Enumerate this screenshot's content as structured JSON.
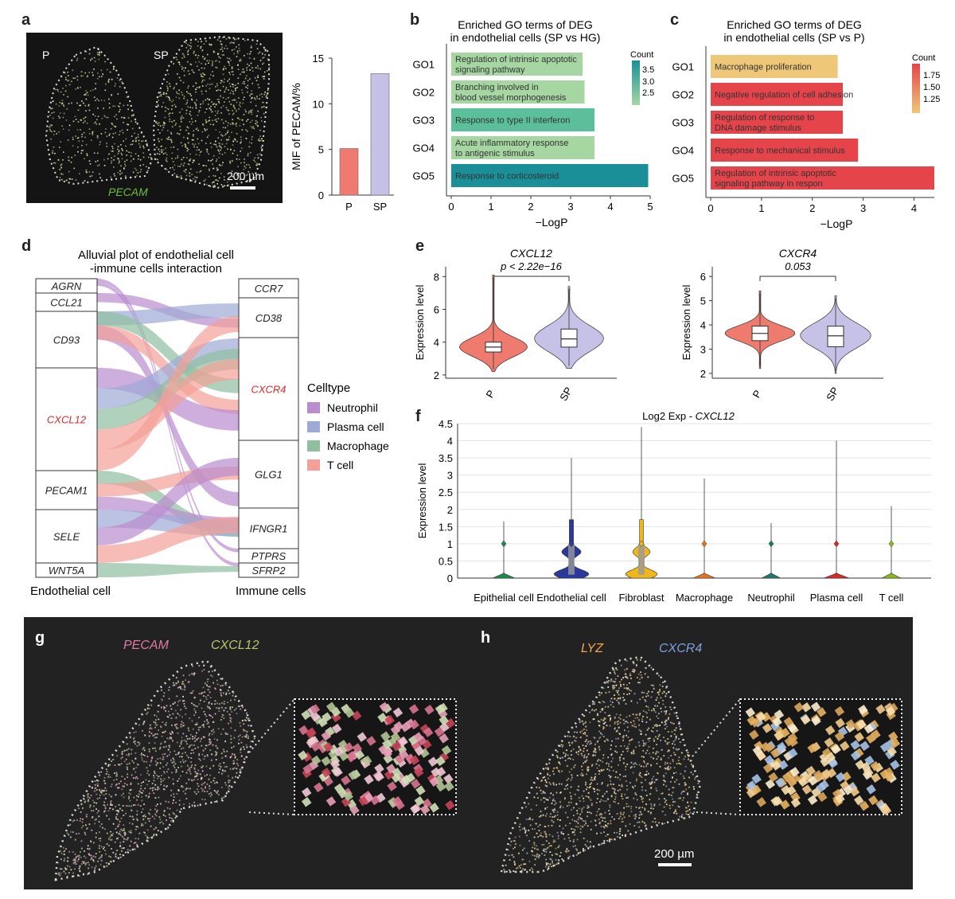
{
  "panels": {
    "a": {
      "letter": "a",
      "image_labels": [
        "P",
        "SP"
      ],
      "gene_label": "PECAM",
      "scale_bar": "200 µm",
      "bar_chart": {
        "type": "bar",
        "categories": [
          "P",
          "SP"
        ],
        "values": [
          5.1,
          13.3
        ],
        "ylabel": "MIF of PECAM/%",
        "ylim": [
          0,
          15
        ],
        "yticks": [
          "0",
          "5",
          "10",
          "15"
        ],
        "colors": [
          "#f07a6f",
          "#c5c0e6"
        ]
      }
    },
    "b": {
      "letter": "b",
      "title_line1": "Enriched GO terms of DEG",
      "title_line2": "in endothelial cells (SP vs HG)",
      "xlabel": "−LogP",
      "xticks": [
        "0",
        "1",
        "2",
        "3",
        "4",
        "5"
      ],
      "legend_title": "Count",
      "legend_values": [
        "3.5",
        "3.0",
        "2.5"
      ]
    },
    "c": {
      "letter": "c",
      "title_line1": "Enriched GO terms of DEG",
      "title_line2": "in endothelial cells (SP vs P)",
      "xlabel": "−LogP",
      "xticks": [
        "0",
        "1",
        "2",
        "3",
        "4"
      ],
      "legend_title": "Count",
      "legend_values": [
        "1.75",
        "1.50",
        "1.25"
      ]
    },
    "d": {
      "letter": "d",
      "title_line1": "Alluvial plot of endothelial cell",
      "title_line2": "-immune cells interaction",
      "left_axis": "Endothelial cell",
      "right_axis": "Immune cells",
      "left_nodes": [
        "AGRN",
        "CCL21",
        "CD93",
        "CXCL12",
        "PECAM1",
        "SELE",
        "WNT5A"
      ],
      "right_nodes": [
        "CCR7",
        "CD38",
        "CXCR4",
        "GLG1",
        "IFNGR1",
        "PTPRS",
        "SFRP2"
      ],
      "legend_title": "Celltype",
      "legend": [
        {
          "name": "Neutrophil",
          "color": "#b98ccf"
        },
        {
          "name": "Plasma cell",
          "color": "#9eaad6"
        },
        {
          "name": "Macrophage",
          "color": "#8fbf9f"
        },
        {
          "name": "T cell",
          "color": "#f4a097"
        }
      ]
    },
    "e": {
      "letter": "e",
      "left_title": "CXCL12",
      "left_pvalue": "p < 2.22e−16",
      "right_title": "CXCR4",
      "right_pvalue": "0.053",
      "ylabel": "Expression level",
      "left_yticks": [
        "2",
        "4",
        "6",
        "8"
      ],
      "right_yticks": [
        "2",
        "3",
        "4",
        "5",
        "6"
      ],
      "groups": [
        "P",
        "SP"
      ]
    },
    "f": {
      "letter": "f",
      "title_prefix": "Log2 Exp - ",
      "title_gene": "CXCL12",
      "ylabel": "Expression level",
      "yticks": [
        "0",
        "0.5",
        "1",
        "1.5",
        "2",
        "2.5",
        "3",
        "3.5",
        "4",
        "4.5"
      ],
      "cell_types": [
        "Epithelial cell",
        "Endothelial cell",
        "Fibroblast",
        "Macrophage",
        "Neutrophil",
        "Plasma cell",
        "T cell"
      ]
    },
    "g": {
      "letter": "g",
      "gene1": "PECAM",
      "gene2": "CXCL12"
    },
    "h": {
      "letter": "h",
      "gene1": "LYZ",
      "gene2": "CXCR4",
      "scale_bar": "200 µm"
    }
  },
  "chart_data": [
    {
      "type": "bar",
      "panel": "b",
      "categories": [
        "GO1",
        "GO2",
        "GO3",
        "GO4",
        "GO5"
      ],
      "labels": [
        "Regulation of intrinsic apoptotic signaling pathway",
        "Branching involved in blood vessel morphogenesis",
        "Response to type II interferon",
        "Acute inflammatory response to antigenic stimulus",
        "Response to corticosteroid"
      ],
      "values": [
        3.3,
        3.35,
        3.6,
        3.6,
        4.95
      ],
      "counts": [
        2.3,
        2.3,
        2.9,
        2.3,
        3.7
      ],
      "colors": [
        "#a6d7a3",
        "#a6d7a3",
        "#5cbf9b",
        "#a6d7a3",
        "#1b8f98"
      ],
      "xlabel": "−LogP",
      "xlim": [
        0,
        5
      ]
    },
    {
      "type": "bar",
      "panel": "c",
      "categories": [
        "GO1",
        "GO2",
        "GO3",
        "GO4",
        "GO5"
      ],
      "labels": [
        "Macrophage proliferation",
        "Negative regulation of cell adhesion",
        "Regulation of response to DNA damage stimulus",
        "Response to mechanical stimulus",
        "Regulation of intrinsic apoptotic signaling pathway in respon"
      ],
      "values": [
        2.5,
        2.6,
        2.6,
        2.9,
        4.4
      ],
      "counts": [
        1.0,
        2.0,
        2.0,
        2.0,
        2.0
      ],
      "colors": [
        "#eec878",
        "#e5444b",
        "#e5444b",
        "#e5444b",
        "#e5444b"
      ],
      "xlabel": "−LogP",
      "xlim": [
        0,
        4.4
      ]
    },
    {
      "type": "violin",
      "panel": "e-left",
      "title": "CXCL12",
      "categories": [
        "P",
        "SP"
      ],
      "medians": [
        3.7,
        4.2
      ],
      "q1": [
        3.4,
        3.7
      ],
      "q3": [
        4.0,
        4.8
      ],
      "ranges": [
        [
          2.2,
          8.1
        ],
        [
          2.4,
          7.4
        ]
      ],
      "ylim": [
        1.8,
        8.6
      ],
      "colors": [
        "#ee7b6e",
        "#c6c1e7"
      ]
    },
    {
      "type": "violin",
      "panel": "e-right",
      "title": "CXCR4",
      "categories": [
        "P",
        "SP"
      ],
      "medians": [
        3.65,
        3.55
      ],
      "q1": [
        3.35,
        3.1
      ],
      "q3": [
        3.95,
        3.95
      ],
      "ranges": [
        [
          2.2,
          5.4
        ],
        [
          2.0,
          5.2
        ]
      ],
      "ylim": [
        1.8,
        6.4
      ],
      "colors": [
        "#ee7b6e",
        "#c6c1e7"
      ]
    },
    {
      "type": "violin",
      "panel": "f",
      "title": "Log2 Exp - CXCL12",
      "categories": [
        "Epithelial cell",
        "Endothelial cell",
        "Fibroblast",
        "Macrophage",
        "Neutrophil",
        "Plasma cell",
        "T cell"
      ],
      "maxima": [
        1.65,
        3.5,
        4.4,
        2.9,
        1.6,
        4.0,
        2.1
      ],
      "colors": [
        "#1a8d4b",
        "#2b3a9a",
        "#f0b71d",
        "#e8751e",
        "#1d7a6a",
        "#d92a2a",
        "#8ab81e"
      ],
      "ylim": [
        0,
        4.5
      ]
    }
  ]
}
